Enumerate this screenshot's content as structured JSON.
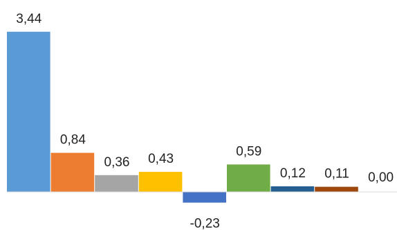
{
  "chart_data": {
    "type": "bar",
    "categories": [
      "",
      "",
      "",
      "",
      "",
      "",
      "",
      "",
      ""
    ],
    "values": [
      3.44,
      0.84,
      0.36,
      0.43,
      -0.23,
      0.59,
      0.12,
      0.11,
      0.0
    ],
    "value_labels": [
      "3,44",
      "0,84",
      "0,36",
      "0,43",
      "-0,23",
      "0,59",
      "0,12",
      "0,11",
      "0,00"
    ],
    "colors": [
      "#5b9bd5",
      "#ed7d31",
      "#a5a5a5",
      "#ffc000",
      "#4472c4",
      "#70ad47",
      "#255e91",
      "#9e480e",
      "#636363"
    ],
    "ylim": [
      -0.23,
      3.44
    ],
    "title": "",
    "xlabel": "",
    "ylabel": "",
    "grid": false,
    "legend": "none"
  }
}
